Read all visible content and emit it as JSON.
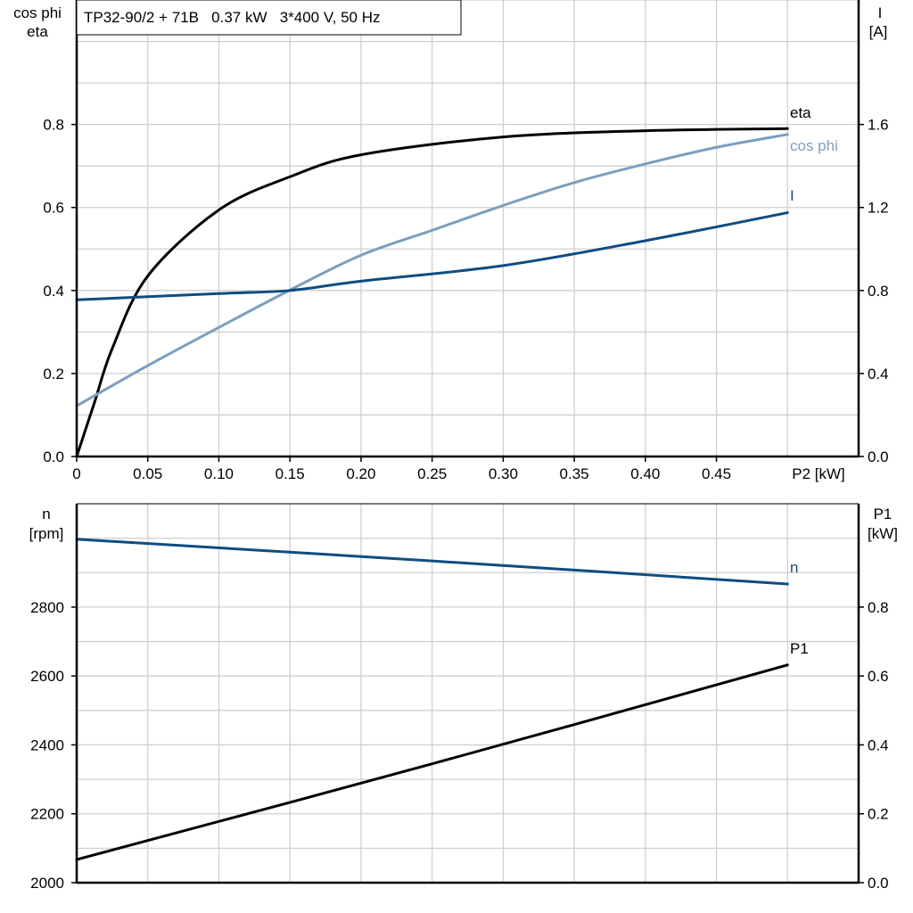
{
  "title": "TP32-90/2 + 71B   0.37 kW   3*400 V, 50 Hz",
  "colors": {
    "eta": "#000000",
    "cos_phi": "#7b9fc0",
    "I": "#0f4c81",
    "n": "#0f4c81",
    "P1": "#000000",
    "grid": "#d0d0d0"
  },
  "chart_data": [
    {
      "type": "line",
      "xlabel": "P2 [kW]",
      "ylabel_left": [
        "cos phi",
        "eta"
      ],
      "ylabel_right": [
        "I",
        "[A]"
      ],
      "xlim": [
        0,
        0.55
      ],
      "ylim_left": [
        0,
        1.1
      ],
      "ylim_right": [
        0,
        2.2
      ],
      "x_ticks": [
        "0",
        "0.05",
        "0.10",
        "0.15",
        "0.20",
        "0.25",
        "0.30",
        "0.35",
        "0.40",
        "0.45"
      ],
      "y_ticks_left": [
        "0.0",
        "0.2",
        "0.4",
        "0.6",
        "0.8"
      ],
      "y_ticks_right": [
        "0.0",
        "0.4",
        "0.8",
        "1.2",
        "1.6"
      ],
      "grid": true,
      "series": [
        {
          "name": "eta",
          "axis": "left",
          "x": [
            0,
            0.0125,
            0.025,
            0.05,
            0.1,
            0.15,
            0.2,
            0.3,
            0.4,
            0.5
          ],
          "y": [
            0,
            0.13,
            0.26,
            0.435,
            0.594,
            0.674,
            0.727,
            0.77,
            0.785,
            0.79
          ]
        },
        {
          "name": "cos phi",
          "axis": "left",
          "x": [
            0,
            0.05,
            0.1,
            0.15,
            0.2,
            0.25,
            0.3,
            0.35,
            0.4,
            0.45,
            0.5
          ],
          "y": [
            0.122,
            0.219,
            0.311,
            0.401,
            0.485,
            0.545,
            0.605,
            0.66,
            0.705,
            0.745,
            0.776
          ]
        },
        {
          "name": "I",
          "axis": "right",
          "x": [
            0,
            0.1,
            0.15,
            0.2,
            0.3,
            0.4,
            0.5
          ],
          "y": [
            0.755,
            0.785,
            0.8,
            0.845,
            0.92,
            1.04,
            1.175
          ]
        }
      ]
    },
    {
      "type": "line",
      "ylabel_left": [
        "n",
        "[rpm]"
      ],
      "ylabel_right": [
        "P1",
        "[kW]"
      ],
      "xlim": [
        0,
        0.55
      ],
      "ylim_left": [
        2000,
        3100
      ],
      "ylim_right": [
        0,
        1.1
      ],
      "y_ticks_left": [
        "2000",
        "2200",
        "2400",
        "2600",
        "2800"
      ],
      "y_ticks_right": [
        "0.0",
        "0.2",
        "0.4",
        "0.6",
        "0.8"
      ],
      "grid": true,
      "series": [
        {
          "name": "n",
          "axis": "left",
          "x": [
            0,
            0.25,
            0.5
          ],
          "y": [
            2997,
            2934,
            2867
          ]
        },
        {
          "name": "P1",
          "axis": "right",
          "x": [
            0,
            0.25,
            0.5
          ],
          "y": [
            0.067,
            0.345,
            0.632
          ]
        }
      ]
    }
  ]
}
